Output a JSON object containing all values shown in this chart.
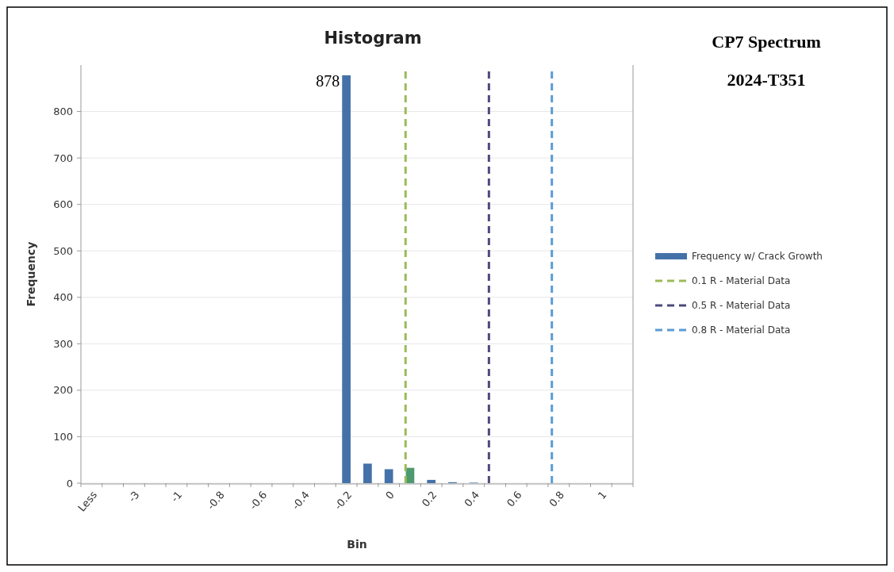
{
  "chart_data": {
    "type": "bar",
    "title": "Histogram",
    "xlabel": "Bin",
    "ylabel": "Frequency",
    "annotations": [
      "CP7 Spectrum",
      "2024-T351"
    ],
    "categories": [
      "Less",
      null,
      "-3",
      null,
      "-1",
      null,
      "-0.8",
      null,
      "-0.6",
      null,
      "-0.4",
      null,
      "-0.2",
      null,
      "0",
      null,
      "0.2",
      null,
      "0.4",
      null,
      "0.6",
      null,
      "0.8",
      null,
      "1",
      null
    ],
    "series": [
      {
        "name": "Frequency w/ Crack Growth",
        "color": "#4472a8",
        "colors": [
          "#4472a8",
          "#4472a8",
          "#4472a8",
          "#4472a8",
          "#4472a8",
          "#4472a8",
          "#4472a8",
          "#4472a8",
          "#4472a8",
          "#4472a8",
          "#4472a8",
          "#4472a8",
          "#4472a8",
          "#4472a8",
          "#4472a8",
          "#4e9a70",
          "#4472a8",
          "#4472a8",
          "#4472a8",
          "#4472a8",
          "#4472a8",
          "#4472a8",
          "#4472a8",
          "#4472a8",
          "#4472a8",
          "#4472a8"
        ],
        "values": [
          0,
          0,
          0,
          0,
          0,
          0,
          0,
          0,
          0,
          0,
          0,
          0,
          878,
          42,
          30,
          33,
          7,
          2,
          1,
          0,
          0,
          0,
          0,
          0,
          0,
          0
        ],
        "value_labels": [
          null,
          null,
          null,
          null,
          null,
          null,
          null,
          null,
          null,
          null,
          null,
          null,
          "878",
          null,
          null,
          null,
          null,
          null,
          null,
          null,
          null,
          null,
          null,
          null,
          null,
          null
        ]
      }
    ],
    "ref_lines": [
      {
        "axis": "x",
        "label": "0.1 R - Material Data",
        "color": "#9bbb59",
        "line_style": "dashed"
      },
      {
        "axis": "x",
        "label": "0.5 R - Material Data",
        "color": "#4d4a7d",
        "line_style": "dashed"
      },
      {
        "axis": "x",
        "label": "0.8 R - Material Data",
        "color": "#5b9bd5",
        "line_style": "dashed"
      }
    ],
    "ylim": [
      0,
      900
    ],
    "yticks": [
      0,
      100,
      200,
      300,
      400,
      500,
      600,
      700,
      800
    ],
    "grid": "y",
    "legend": "right"
  }
}
